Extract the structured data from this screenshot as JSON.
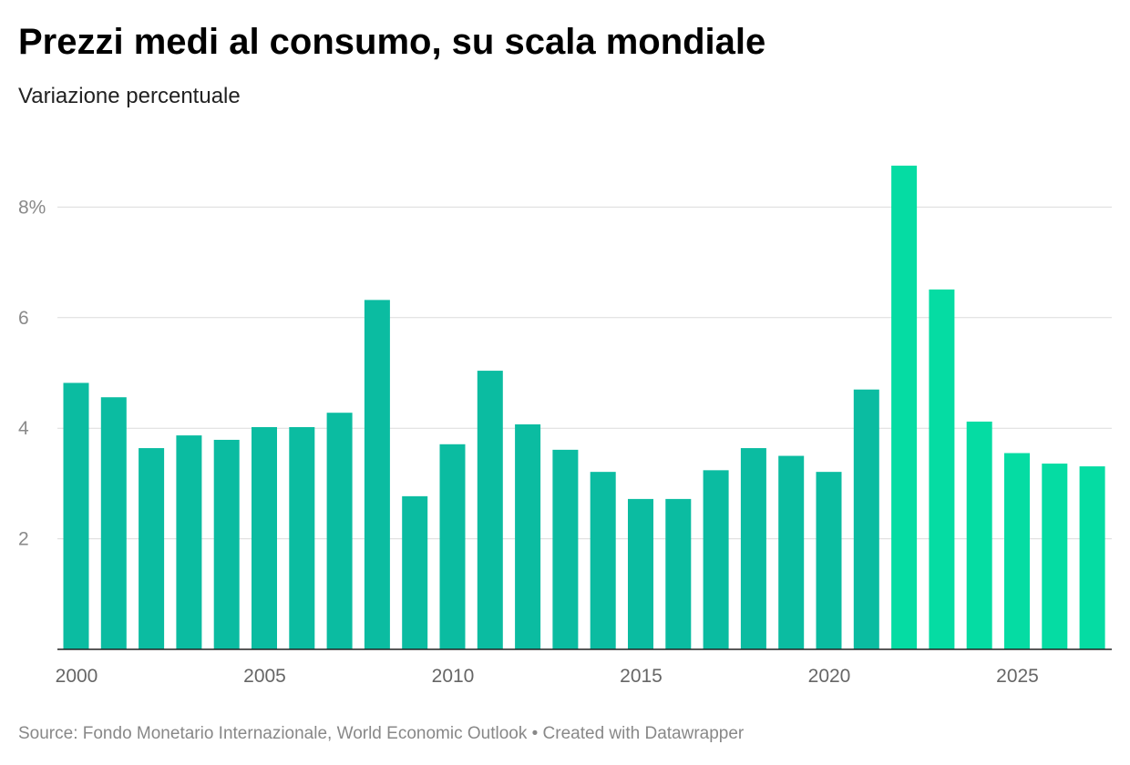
{
  "header": {
    "title": "Prezzi medi al consumo, su scala mondiale",
    "subtitle": "Variazione percentuale"
  },
  "footer": {
    "source": "Source: Fondo Monetario Internazionale, World Economic Outlook • Created with Datawrapper"
  },
  "colors": {
    "actual": "#0bbca1",
    "forecast": "#05dca3",
    "grid": "#dcdcdc",
    "axis": "#222222",
    "tick_text": "#8a8a8a"
  },
  "chart_data": {
    "type": "bar",
    "title": "Prezzi medi al consumo, su scala mondiale",
    "subtitle": "Variazione percentuale",
    "xlabel": "",
    "ylabel": "",
    "categories": [
      2000,
      2001,
      2002,
      2003,
      2004,
      2005,
      2006,
      2007,
      2008,
      2009,
      2010,
      2011,
      2012,
      2013,
      2014,
      2015,
      2016,
      2017,
      2018,
      2019,
      2020,
      2021,
      2022,
      2023,
      2024,
      2025,
      2026,
      2027
    ],
    "values": [
      4.82,
      4.56,
      3.64,
      3.87,
      3.79,
      4.02,
      4.02,
      4.28,
      6.32,
      2.77,
      3.71,
      5.04,
      4.07,
      3.61,
      3.21,
      2.72,
      2.72,
      3.24,
      3.64,
      3.5,
      3.21,
      4.7,
      8.75,
      6.51,
      4.12,
      3.55,
      3.36,
      3.31
    ],
    "forecast_from": 2022,
    "ylim": [
      0,
      9.2
    ],
    "yticks": [
      {
        "value": 2,
        "label": "2"
      },
      {
        "value": 4,
        "label": "4"
      },
      {
        "value": 6,
        "label": "6"
      },
      {
        "value": 8,
        "label": "8%"
      }
    ],
    "xticks": [
      {
        "value": 2000,
        "label": "2000"
      },
      {
        "value": 2005,
        "label": "2005"
      },
      {
        "value": 2010,
        "label": "2010"
      },
      {
        "value": 2015,
        "label": "2015"
      },
      {
        "value": 2020,
        "label": "2020"
      },
      {
        "value": 2025,
        "label": "2025"
      }
    ],
    "grid": true,
    "legend": "none"
  }
}
